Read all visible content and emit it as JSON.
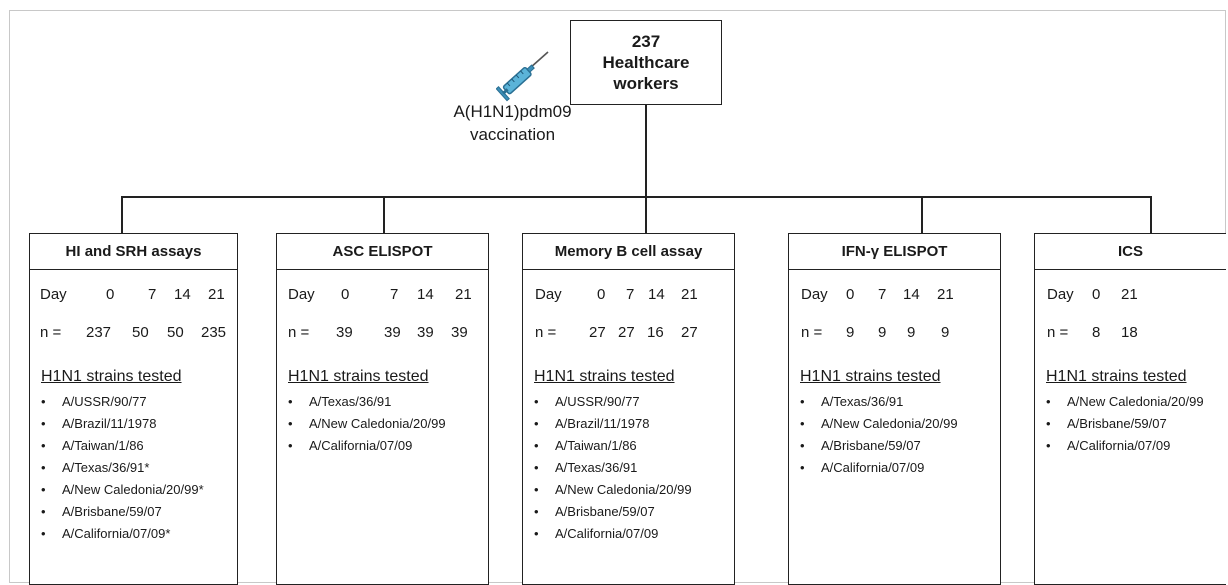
{
  "top_box": {
    "count": "237",
    "line1": "Healthcare",
    "line2": "workers"
  },
  "vaccination": {
    "line1": "A(H1N1)pdm09",
    "line2": "vaccination",
    "icon": "syringe-icon"
  },
  "strains_heading": "H1N1 strains tested",
  "day_label": "Day",
  "n_label": "n =",
  "panels": [
    {
      "title": "HI and SRH assays",
      "days": [
        "0",
        "7",
        "14",
        "21"
      ],
      "n": [
        "237",
        "50",
        "50",
        "235"
      ],
      "strains": [
        "A/USSR/90/77",
        "A/Brazil/11/1978",
        "A/Taiwan/1/86",
        "A/Texas/36/91*",
        "A/New Caledonia/20/99*",
        "A/Brisbane/59/07",
        "A/California/07/09*"
      ]
    },
    {
      "title": "ASC ELISPOT",
      "days": [
        "0",
        "7",
        "14",
        "21"
      ],
      "n": [
        "39",
        "39",
        "39",
        "39"
      ],
      "strains": [
        "A/Texas/36/91",
        "A/New Caledonia/20/99",
        "A/California/07/09"
      ]
    },
    {
      "title": "Memory B cell assay",
      "days": [
        "0",
        "7",
        "14",
        "21"
      ],
      "n": [
        "27",
        "27",
        "16",
        "27"
      ],
      "strains": [
        "A/USSR/90/77",
        "A/Brazil/11/1978",
        "A/Taiwan/1/86",
        "A/Texas/36/91",
        "A/New Caledonia/20/99",
        "A/Brisbane/59/07",
        "A/California/07/09"
      ]
    },
    {
      "title": "IFN-γ ELISPOT",
      "days": [
        "0",
        "7",
        "14",
        "21"
      ],
      "n": [
        "9",
        "9",
        "9",
        "9"
      ],
      "strains": [
        "A/Texas/36/91",
        "A/New Caledonia/20/99",
        "A/Brisbane/59/07",
        "A/California/07/09"
      ]
    },
    {
      "title": "ICS",
      "days": [
        "0",
        "21"
      ],
      "n": [
        "8",
        "18"
      ],
      "strains": [
        "A/New Caledonia/20/99",
        "A/Brisbane/59/07",
        "A/California/07/09"
      ]
    }
  ]
}
